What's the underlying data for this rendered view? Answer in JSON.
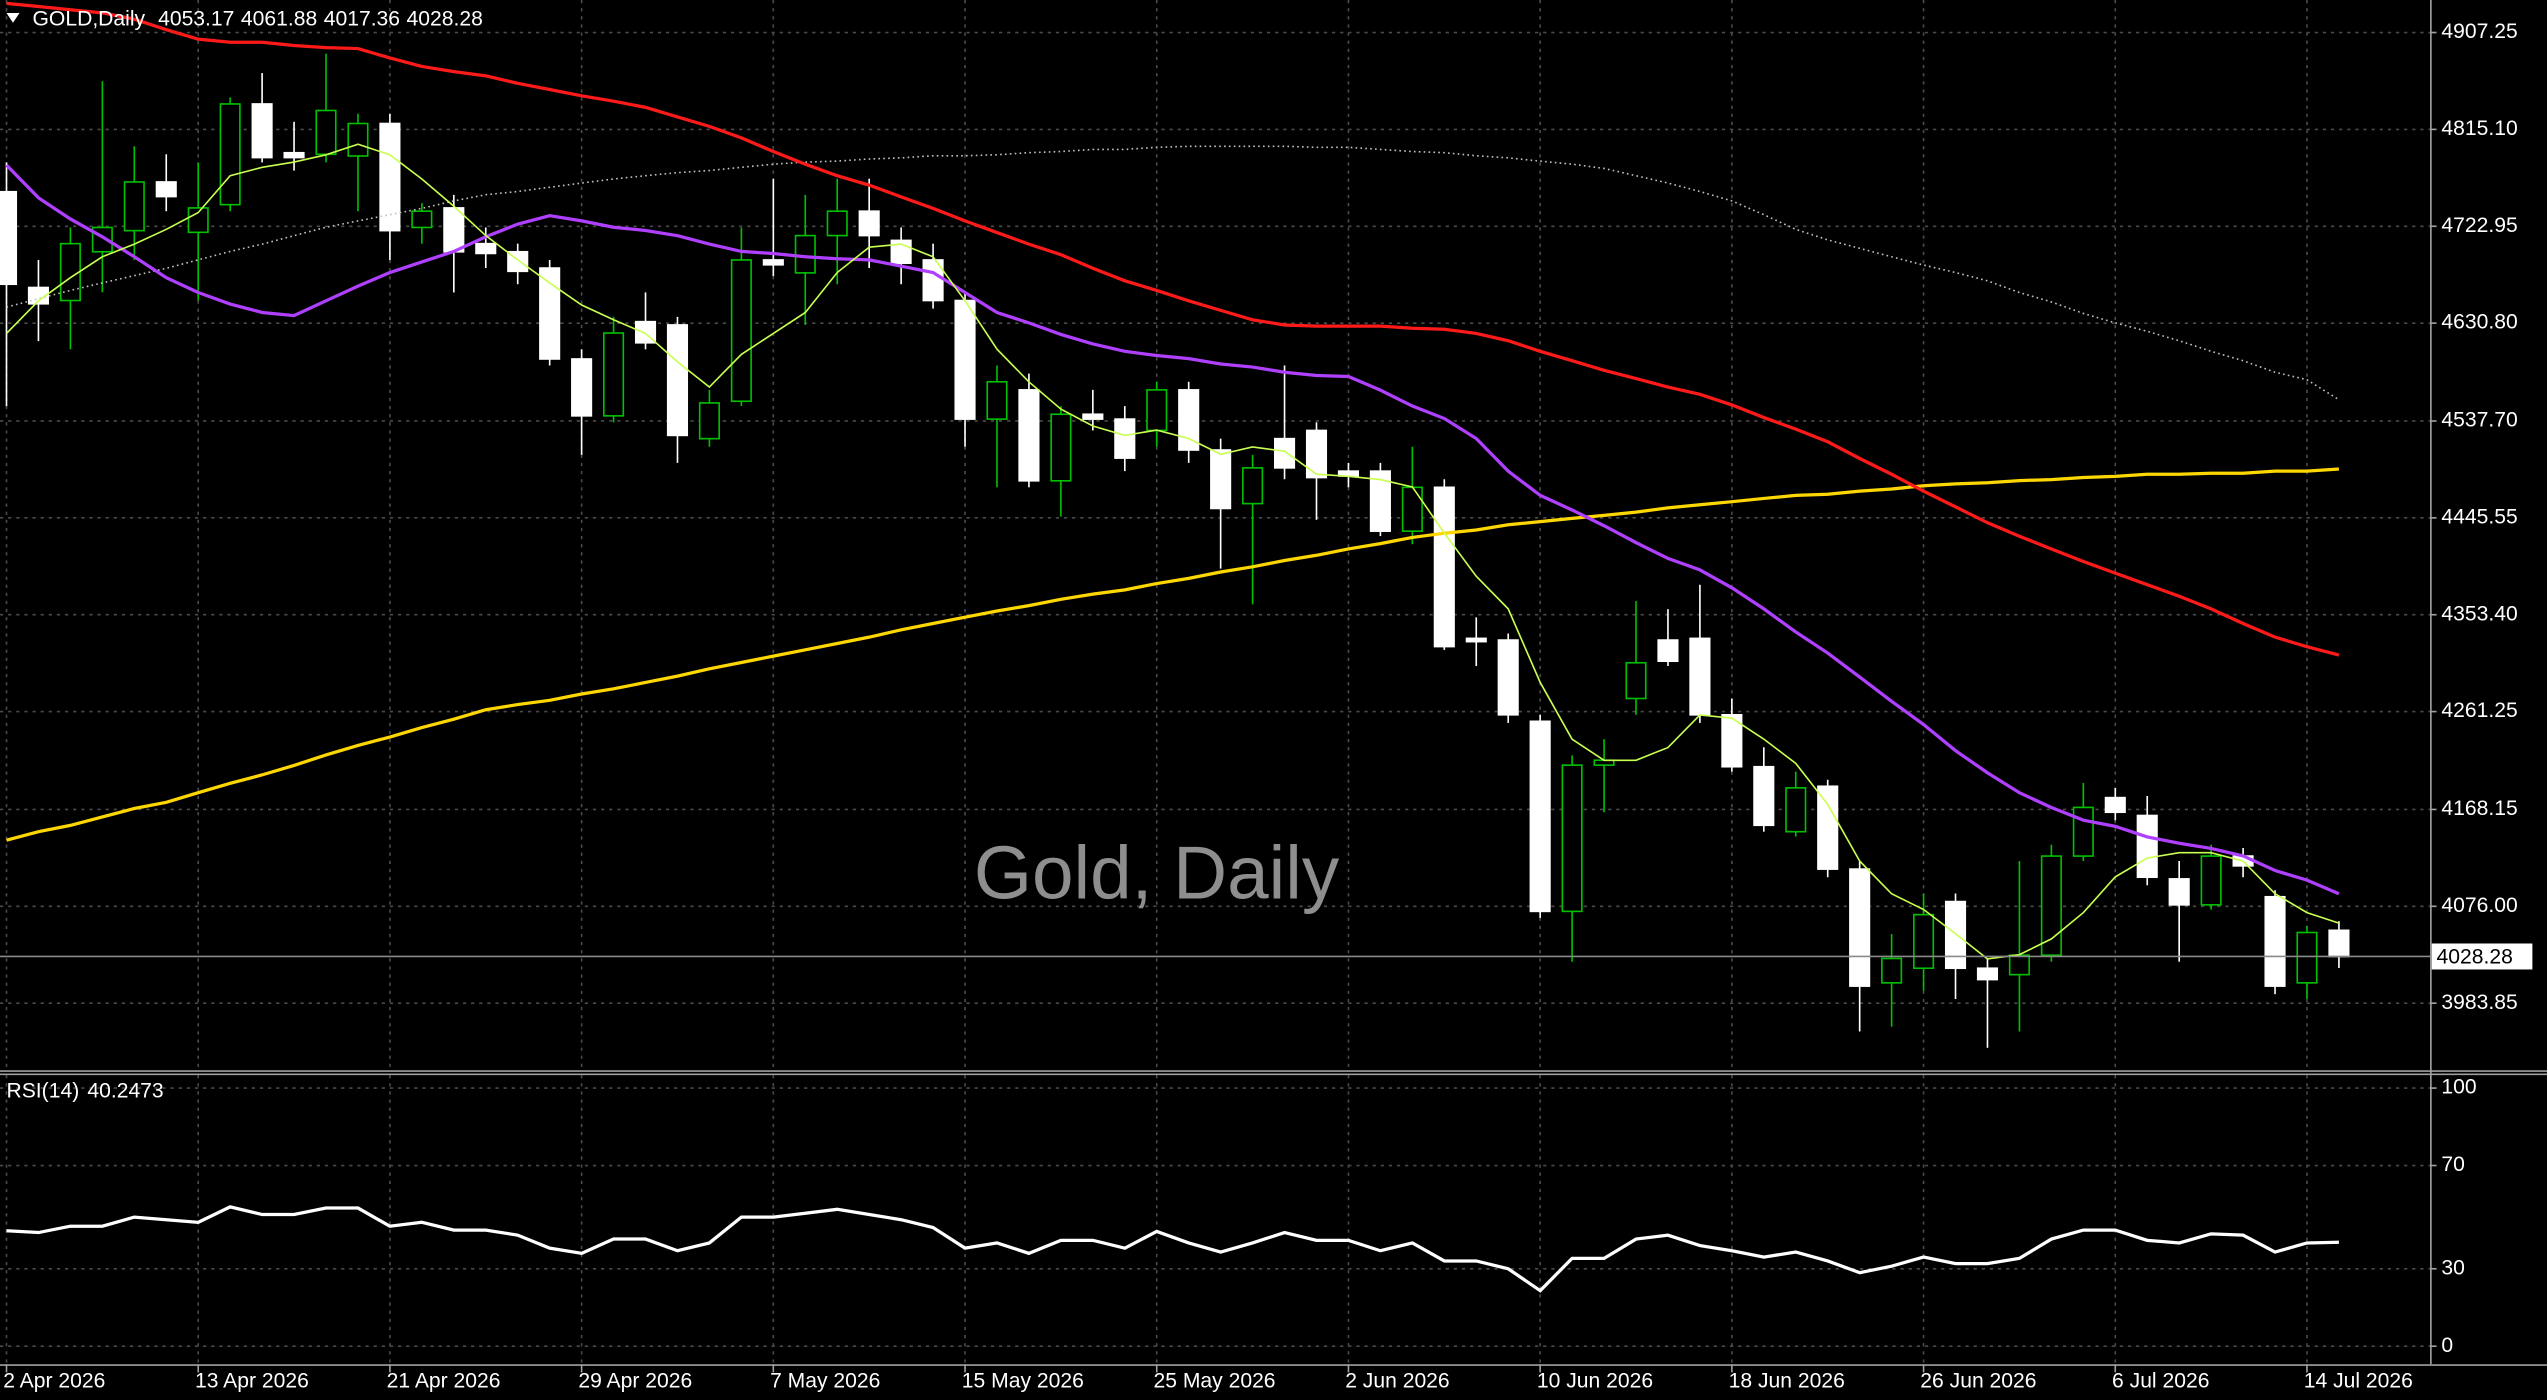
{
  "chart_data": [
    {
      "type": "candlestick",
      "title": "GOLD,Daily",
      "watermark": "Gold, Daily",
      "categories": [
        "2 Apr 2026",
        null,
        null,
        null,
        null,
        null,
        "13 Apr 2026",
        null,
        null,
        null,
        null,
        null,
        "21 Apr 2026",
        null,
        null,
        null,
        null,
        null,
        "29 Apr 2026",
        null,
        null,
        null,
        null,
        null,
        "7 May 2026",
        null,
        null,
        null,
        null,
        null,
        "15 May 2026",
        null,
        null,
        null,
        null,
        null,
        "25 May 2026",
        null,
        null,
        null,
        null,
        null,
        "2 Jun 2026",
        null,
        null,
        null,
        null,
        null,
        "10 Jun 2026",
        null,
        null,
        null,
        null,
        null,
        "18 Jun 2026",
        null,
        null,
        null,
        null,
        null,
        "26 Jun 2026",
        null,
        null,
        null,
        null,
        null,
        "6 Jul 2026",
        null,
        null,
        null,
        null,
        null,
        "14 Jul 2026",
        null
      ],
      "open": [
        4755.8,
        4664.7,
        4652.3,
        4698.7,
        4718.8,
        4765.1,
        4717.2,
        4743.5,
        4839.3,
        4792.9,
        4791.4,
        4789.8,
        4820.7,
        4721.8,
        4740.4,
        4706.4,
        4698.7,
        4683.2,
        4596.7,
        4542.6,
        4632.2,
        4629.1,
        4520.9,
        4556.5,
        4690.9,
        4678.6,
        4714.1,
        4737.3,
        4709.5,
        4690.9,
        4652.3,
        4539.5,
        4567.3,
        4480.8,
        4544.1,
        4539.5,
        4528.7,
        4567.3,
        4510.1,
        4459.1,
        4520.9,
        4528.7,
        4490.0,
        4490.0,
        4432.9,
        4474.6,
        4330.9,
        4329.3,
        4252.0,
        4071.2,
        4210.3,
        4273.7,
        4329.3,
        4330.9,
        4258.2,
        4208.8,
        4147.0,
        4190.2,
        4111.4,
        4003.2,
        4017.1,
        4080.5,
        4017.1,
        4011.0,
        4029.5,
        4123.8,
        4179.4,
        4162.4,
        4102.1,
        4077.4,
        4123.8,
        4085.1,
        4003.2,
        4053.17
      ],
      "high": [
        4783.7,
        4690.9,
        4721.8,
        4860.9,
        4799.1,
        4791.4,
        4783.7,
        4845.5,
        4868.7,
        4822.3,
        4887.2,
        4830.0,
        4830.0,
        4745.0,
        4752.8,
        4721.8,
        4706.4,
        4690.9,
        4605.9,
        4636.8,
        4660.0,
        4636.8,
        4567.3,
        4721.8,
        4768.2,
        4752.8,
        4768.2,
        4768.2,
        4721.8,
        4706.4,
        4660.0,
        4590.5,
        4582.8,
        4551.8,
        4567.3,
        4551.8,
        4575.0,
        4575.0,
        4520.9,
        4505.5,
        4590.5,
        4536.4,
        4497.8,
        4497.8,
        4513.2,
        4482.3,
        4350.9,
        4335.5,
        4258.2,
        4219.6,
        4235.0,
        4366.4,
        4358.7,
        4381.9,
        4273.7,
        4227.3,
        4204.1,
        4196.4,
        4119.1,
        4049.6,
        4088.2,
        4088.2,
        4026.4,
        4119.1,
        4134.6,
        4193.3,
        4188.7,
        4181.0,
        4119.1,
        4134.6,
        4131.5,
        4091.3,
        4057.3,
        4061.88
      ],
      "low": [
        4551.8,
        4613.7,
        4605.9,
        4660.0,
        4690.9,
        4737.3,
        4652.3,
        4737.3,
        4783.7,
        4775.9,
        4783.7,
        4737.3,
        4690.9,
        4706.4,
        4660.0,
        4683.2,
        4667.8,
        4590.5,
        4505.5,
        4536.4,
        4605.9,
        4497.8,
        4513.2,
        4551.8,
        4675.5,
        4629.1,
        4667.8,
        4683.2,
        4667.8,
        4644.6,
        4513.2,
        4474.6,
        4474.6,
        4446.8,
        4528.7,
        4490.0,
        4513.2,
        4497.8,
        4397.3,
        4363.3,
        4482.3,
        4443.7,
        4474.6,
        4428.2,
        4420.5,
        4320.0,
        4304.6,
        4250.5,
        4065.0,
        4023.3,
        4165.5,
        4258.2,
        4304.6,
        4250.5,
        4204.1,
        4147.0,
        4142.3,
        4103.7,
        3956.9,
        3961.5,
        3995.5,
        3987.8,
        3941.4,
        3956.9,
        4023.3,
        4119.1,
        4157.8,
        4096.0,
        4023.3,
        4072.8,
        4103.7,
        3992.4,
        3987.8,
        4017.36
      ],
      "close": [
        4667.8,
        4649.2,
        4706.4,
        4721.8,
        4765.1,
        4751.2,
        4740.4,
        4839.3,
        4788.3,
        4788.3,
        4833.1,
        4820.7,
        4718.8,
        4737.3,
        4698.7,
        4697.1,
        4680.1,
        4596.7,
        4542.6,
        4621.4,
        4612.1,
        4524.0,
        4554.9,
        4690.9,
        4686.3,
        4714.1,
        4737.3,
        4714.1,
        4687.8,
        4652.3,
        4539.5,
        4575.0,
        4480.8,
        4544.1,
        4539.5,
        4502.4,
        4567.3,
        4510.1,
        4454.5,
        4493.1,
        4493.1,
        4483.9,
        4485.4,
        4432.9,
        4474.6,
        4323.1,
        4327.8,
        4258.2,
        4071.2,
        4210.3,
        4215.0,
        4307.7,
        4309.2,
        4258.2,
        4208.8,
        4153.1,
        4188.7,
        4111.4,
        4000.1,
        4026.4,
        4068.1,
        4017.1,
        4006.3,
        4029.5,
        4123.8,
        4170.1,
        4165.5,
        4103.7,
        4077.4,
        4123.8,
        4114.5,
        4000.1,
        4051.1,
        4028.28
      ],
      "up_color": "#00c000",
      "down_color": "#ffffff",
      "lines": [
        {
          "color": "#c0c0c0",
          "style": "dotted",
          "values": [
            4646,
            4654,
            4662,
            4669,
            4676,
            4683,
            4691,
            4699,
            4706,
            4714,
            4722,
            4728,
            4734,
            4740,
            4747,
            4753,
            4756,
            4760,
            4764,
            4768,
            4771,
            4774,
            4776,
            4779,
            4782,
            4784,
            4785,
            4787,
            4788,
            4790,
            4790,
            4791,
            4793,
            4794,
            4796,
            4796,
            4798,
            4799,
            4799,
            4799,
            4799,
            4798,
            4798,
            4796,
            4794,
            4793,
            4790,
            4788,
            4785,
            4782,
            4778,
            4771,
            4764,
            4756,
            4747,
            4734,
            4720,
            4710,
            4702,
            4694,
            4686,
            4679,
            4671,
            4660,
            4651,
            4640,
            4631,
            4623,
            4614,
            4604,
            4595,
            4584,
            4577,
            4558
          ]
        },
        {
          "color": "#ffd700",
          "style": "solid",
          "values": [
            4139,
            4147,
            4153,
            4161,
            4169,
            4175,
            4184,
            4193,
            4201,
            4210,
            4220,
            4229,
            4237,
            4246,
            4254,
            4263,
            4268,
            4272,
            4278,
            4283,
            4289,
            4295,
            4302,
            4308,
            4314,
            4320,
            4326,
            4332,
            4339,
            4345,
            4351,
            4357,
            4362,
            4368,
            4373,
            4377,
            4383,
            4388,
            4394,
            4399,
            4405,
            4410,
            4416,
            4421,
            4427,
            4431,
            4434,
            4439,
            4442,
            4445,
            4448,
            4451,
            4455,
            4458,
            4461,
            4464,
            4467,
            4468,
            4471,
            4473,
            4476,
            4478,
            4479,
            4481,
            4482,
            4484,
            4485,
            4487,
            4487,
            4488,
            4488,
            4490,
            4490,
            4492
          ]
        },
        {
          "color": "#ff1a1a",
          "style": "solid",
          "values": [
            4935,
            4932,
            4929,
            4926,
            4920,
            4910,
            4901,
            4898,
            4898,
            4895,
            4893,
            4892,
            4883,
            4875,
            4870,
            4866,
            4859,
            4853,
            4847,
            4842,
            4836,
            4827,
            4818,
            4807,
            4794,
            4782,
            4771,
            4762,
            4751,
            4740,
            4728,
            4717,
            4706,
            4696,
            4683,
            4671,
            4662,
            4652,
            4643,
            4634,
            4629,
            4628,
            4628,
            4628,
            4626,
            4625,
            4621,
            4614,
            4604,
            4595,
            4586,
            4578,
            4570,
            4563,
            4553,
            4541,
            4530,
            4518,
            4502,
            4487,
            4471,
            4456,
            4441,
            4428,
            4416,
            4404,
            4393,
            4382,
            4371,
            4359,
            4345,
            4332,
            4323,
            4315
          ]
        },
        {
          "color": "#b040ff",
          "style": "solid",
          "values": [
            4781,
            4750,
            4730,
            4713,
            4694,
            4674,
            4660,
            4649,
            4641,
            4638,
            4652,
            4666,
            4679,
            4689,
            4699,
            4713,
            4725,
            4733,
            4728,
            4722,
            4719,
            4714,
            4706,
            4699,
            4697,
            4694,
            4692,
            4691,
            4685,
            4679,
            4660,
            4641,
            4631,
            4620,
            4611,
            4604,
            4600,
            4597,
            4592,
            4589,
            4584,
            4581,
            4580,
            4567,
            4552,
            4540,
            4521,
            4490,
            4467,
            4453,
            4438,
            4422,
            4407,
            4396,
            4379,
            4359,
            4337,
            4317,
            4294,
            4271,
            4249,
            4224,
            4203,
            4184,
            4170,
            4158,
            4152,
            4142,
            4136,
            4131,
            4124,
            4110,
            4101,
            4088
          ]
        },
        {
          "color": "#c8ff50",
          "style": "thin",
          "values": [
            4621,
            4652,
            4674,
            4694,
            4706,
            4720,
            4736,
            4771,
            4779,
            4784,
            4791,
            4801,
            4791,
            4768,
            4742,
            4714,
            4691,
            4669,
            4648,
            4634,
            4621,
            4594,
            4570,
            4601,
            4621,
            4641,
            4679,
            4703,
            4706,
            4694,
            4652,
            4606,
            4575,
            4549,
            4533,
            4524,
            4529,
            4521,
            4506,
            4513,
            4509,
            4487,
            4485,
            4482,
            4475,
            4431,
            4390,
            4359,
            4289,
            4235,
            4215,
            4215,
            4227,
            4258,
            4255,
            4235,
            4212,
            4173,
            4119,
            4088,
            4073,
            4050,
            4026,
            4030,
            4045,
            4070,
            4104,
            4122,
            4127,
            4127,
            4119,
            4088,
            4070,
            4060
          ]
        }
      ],
      "ylim": [
        3920,
        4938.2
      ],
      "yticks": [
        4907.25,
        {
          "value": 4815.1,
          "label": "4815.10"
        },
        4722.95,
        {
          "value": 4630.8,
          "label": "4630.80"
        },
        {
          "value": 4537.7,
          "label": "4537.70"
        },
        4445.55,
        {
          "value": 4353.4,
          "label": "4353.40"
        },
        4261.25,
        4168.15,
        {
          "value": 4076,
          "label": "4076.00"
        },
        3983.85
      ],
      "grid": true
    },
    {
      "type": "line",
      "title": "RSI(14)",
      "color": "#ffffff",
      "values": [
        44.7,
        44,
        46.5,
        46.5,
        50,
        49,
        48,
        54,
        51,
        51,
        53.5,
        53.5,
        46.5,
        48,
        45,
        45,
        43,
        38,
        36,
        41.5,
        41.5,
        37,
        40,
        50,
        50,
        51.5,
        53,
        51,
        49,
        46,
        38,
        40,
        36,
        41,
        41,
        38,
        44.5,
        40,
        36.5,
        40,
        44,
        41,
        41,
        37,
        40,
        33,
        33,
        30,
        21.5,
        34,
        34,
        41.5,
        43,
        39,
        37,
        34.5,
        36.5,
        33,
        28.5,
        31,
        34.5,
        32,
        32,
        34,
        41.5,
        45,
        45,
        41,
        40,
        43.5,
        43,
        36.5,
        40,
        40.2473
      ],
      "ylim": [
        -7,
        105
      ],
      "yticks": [
        0,
        30,
        70,
        100
      ],
      "grid": true
    }
  ]
}
